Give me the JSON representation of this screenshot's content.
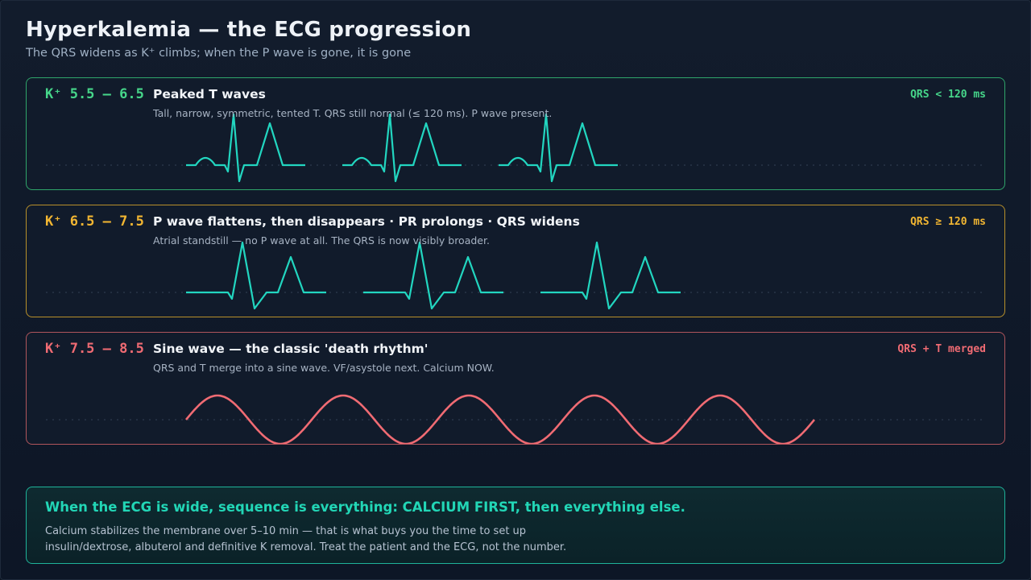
{
  "header": {
    "title": "Hyperkalemia — the ECG progression",
    "subtitle": "The QRS widens as K⁺ climbs; when the P wave is gone, it is gone"
  },
  "stages": [
    {
      "k_range": "K⁺ 5.5 – 6.5",
      "title": "Peaked T waves",
      "description": "Tall, narrow, symmetric, tented T. QRS still normal (≤ 120 ms). P wave present.",
      "qrs_badge": "QRS < 120 ms",
      "color": "#46d68a",
      "trace_color": "#22d6c0",
      "waveform": "peaked-t",
      "beats": 3
    },
    {
      "k_range": "K⁺ 6.5 – 7.5",
      "title": "P wave flattens, then disappears · PR prolongs · QRS widens",
      "description": "Atrial standstill — no P wave at all. The QRS is now visibly broader.",
      "qrs_badge": "QRS ≥ 120 ms",
      "color": "#f2b632",
      "trace_color": "#22d6c0",
      "waveform": "wide-qrs-no-p",
      "beats": 3
    },
    {
      "k_range": "K⁺ 7.5 – 8.5",
      "title": "Sine wave — the classic 'death rhythm'",
      "description": "QRS and T merge into a sine wave. VF/asystole next. Calcium NOW.",
      "qrs_badge": "QRS + T merged",
      "color": "#f06b73",
      "trace_color": "#f06b73",
      "waveform": "sine-wave",
      "cycles": 5
    }
  ],
  "callout": {
    "headline": "When the ECG is wide, sequence is everything: CALCIUM FIRST, then everything else.",
    "body": "Calcium stabilizes the membrane over 5–10 min — that is what buys you the time to set up insulin/dextrose, albuterol and definitive K removal. Treat the patient and the ECG, not the number."
  }
}
